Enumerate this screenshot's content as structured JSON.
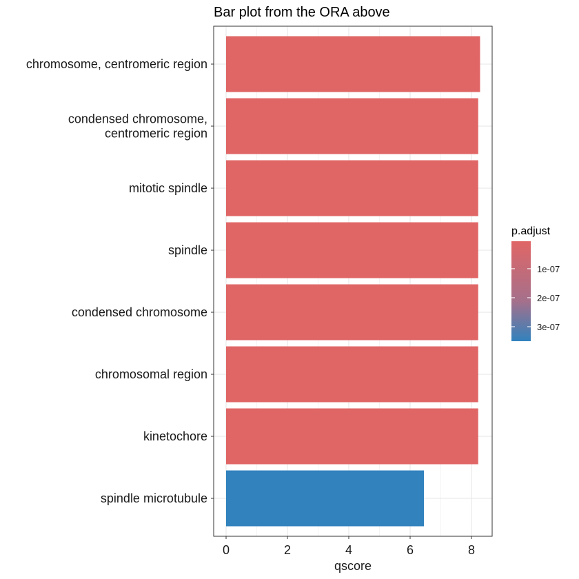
{
  "chart_data": {
    "type": "bar",
    "orientation": "horizontal",
    "title": "Bar plot from the ORA  above",
    "xlabel": "qscore",
    "ylabel": "",
    "xlim": [
      0,
      8.7
    ],
    "xticks": [
      0,
      2,
      4,
      6,
      8
    ],
    "grid": true,
    "categories": [
      "chromosome, centromeric region",
      "condensed chromosome,\ncentromeric region",
      "mitotic spindle",
      "spindle",
      "condensed chromosome",
      "chromosomal region",
      "kinetochore",
      "spindle microtubule"
    ],
    "values": [
      8.28,
      8.22,
      8.22,
      8.22,
      8.22,
      8.22,
      8.22,
      6.45
    ],
    "p_adjust": [
      5.2e-09,
      6e-09,
      6e-09,
      6e-09,
      6e-09,
      6e-09,
      6e-09,
      3.5e-07
    ],
    "legend": {
      "title": "p.adjust",
      "placement": "right",
      "ticks": [
        {
          "value": 1e-07,
          "label": "1e-07"
        },
        {
          "value": 2e-07,
          "label": "2e-07"
        },
        {
          "value": 3e-07,
          "label": "3e-07"
        }
      ],
      "range": [
        5.2e-09,
        3.5e-07
      ],
      "low_color": "#E06666",
      "high_color": "#3182BD"
    }
  }
}
